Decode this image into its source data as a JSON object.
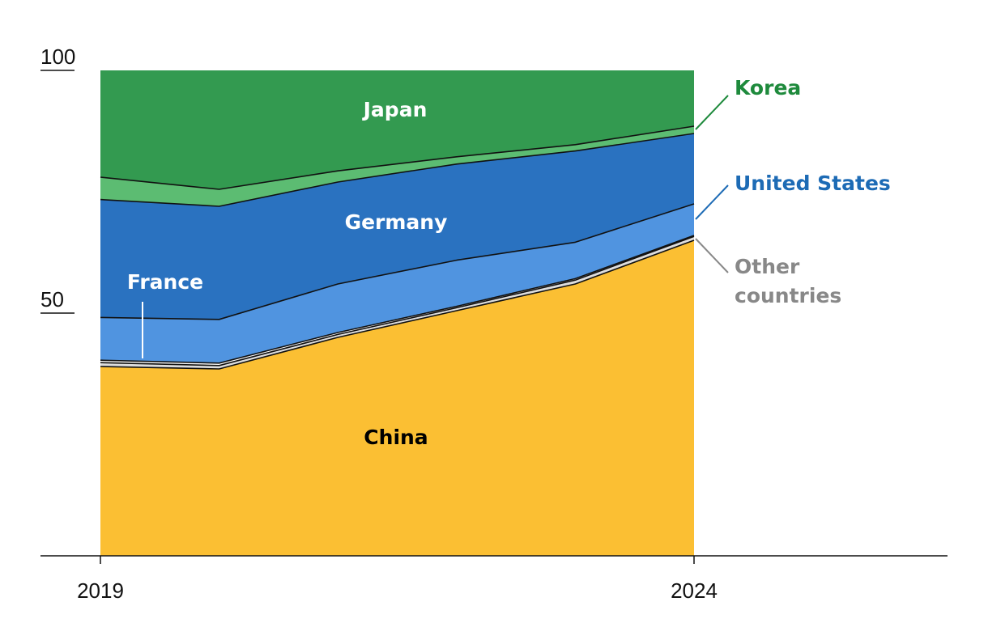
{
  "chart_data": {
    "type": "area",
    "stacked": true,
    "x": [
      2019,
      2020,
      2021,
      2022,
      2023,
      2024
    ],
    "x_ticks": [
      "2019",
      "2024"
    ],
    "y_ticks": [
      "100",
      "50"
    ],
    "ylim": [
      0,
      100
    ],
    "title": "",
    "xlabel": "",
    "ylabel": "",
    "series": [
      {
        "name": "China",
        "values": [
          39.0,
          38.5,
          45.0,
          50.5,
          56.0,
          65.0
        ],
        "color": "#fbbf33",
        "label_color": "#000000"
      },
      {
        "name": "Other countries",
        "values": [
          0.8,
          0.7,
          0.6,
          0.6,
          0.8,
          0.8
        ],
        "color": "#dddddd",
        "label_color": "#888888"
      },
      {
        "name": "France",
        "values": [
          0.5,
          0.5,
          0.4,
          0.3,
          0.3,
          0.2
        ],
        "color": "#ffffff",
        "label_color": "#ffffff"
      },
      {
        "name": "United States",
        "values": [
          8.8,
          9.0,
          10.0,
          9.5,
          7.5,
          6.5
        ],
        "color": "#5094e0",
        "label_color": "#1d6bb5"
      },
      {
        "name": "Germany",
        "values": [
          24.3,
          23.3,
          21.0,
          19.8,
          18.8,
          14.5
        ],
        "color": "#2a72c0",
        "label_color": "#ffffff"
      },
      {
        "name": "Korea",
        "values": [
          4.6,
          3.5,
          2.3,
          1.5,
          1.3,
          1.5
        ],
        "color": "#5cbc72",
        "label_color": "#1e8a3c"
      },
      {
        "name": "Japan",
        "values": [
          22.0,
          24.5,
          20.7,
          17.8,
          15.3,
          11.5
        ],
        "color": "#339a50",
        "label_color": "#ffffff"
      }
    ]
  }
}
